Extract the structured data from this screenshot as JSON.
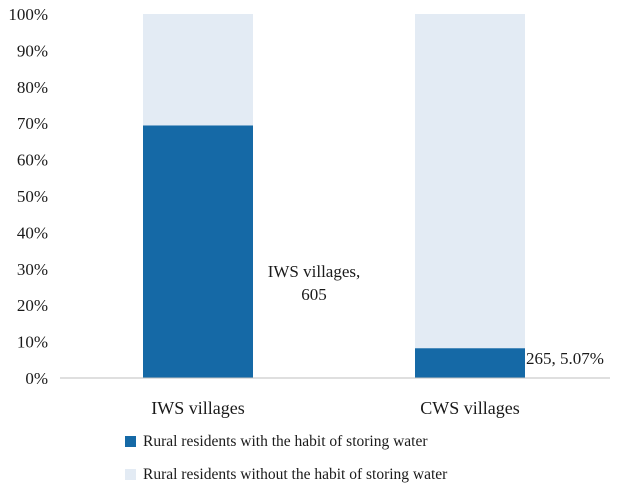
{
  "chart_data": {
    "type": "bar",
    "stacked": true,
    "normalized": true,
    "categories": [
      "IWS villages",
      "CWS villages"
    ],
    "series": [
      {
        "name": "Rural residents with the habit of storing water",
        "color": "#1569a6",
        "values": [
          69.4,
          8.2
        ]
      },
      {
        "name": "Rural residents without the habit of storing water",
        "color": "#e3ebf4",
        "values": [
          30.6,
          91.8
        ]
      }
    ],
    "ylim": [
      0,
      100
    ],
    "yticks": [
      "0%",
      "10%",
      "20%",
      "30%",
      "40%",
      "50%",
      "60%",
      "70%",
      "80%",
      "90%",
      "100%"
    ],
    "data_labels": [
      {
        "category": "IWS villages",
        "lines": [
          "IWS villages,",
          "605"
        ]
      },
      {
        "category": "CWS villages",
        "lines": [
          "265, 5.07%"
        ]
      }
    ],
    "legend_position": "bottom",
    "grid": false
  }
}
